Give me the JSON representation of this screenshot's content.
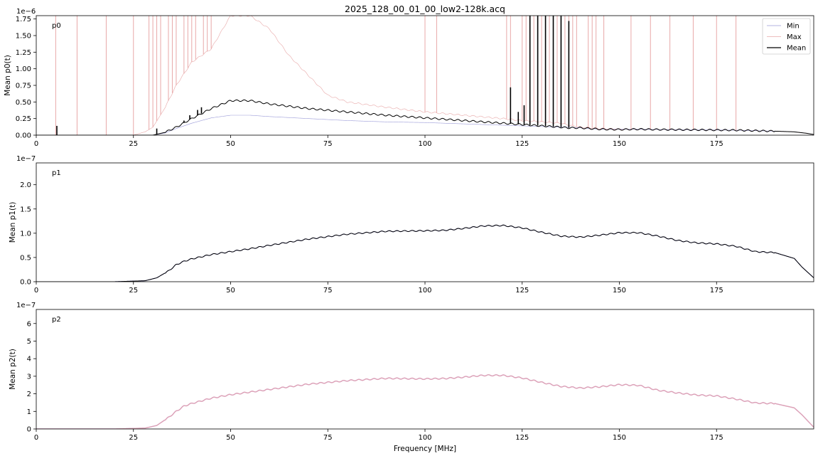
{
  "title": "2025_128_00_01_00_low2-128k.acq",
  "legend": {
    "position": "upper-right",
    "items": [
      {
        "label": "Min",
        "color": "#9a9ad8"
      },
      {
        "label": "Max",
        "color": "#e8a8a8"
      },
      {
        "label": "Mean",
        "color": "#000000"
      }
    ]
  },
  "colors": {
    "min": "#9a9ad8",
    "max": "#e8a8a8",
    "mean": "#000000",
    "p2_line": "#e0a2b2"
  },
  "chart_data": [
    {
      "type": "line",
      "panel": "p0",
      "panel_label": "p0",
      "ylabel": "Mean p0(t)",
      "scale_label": "1e−6",
      "xlim": [
        0,
        200
      ],
      "ylim": [
        0,
        1.8
      ],
      "xticks": [
        0,
        25,
        50,
        75,
        100,
        125,
        150,
        175
      ],
      "yticks": [
        0.0,
        0.25,
        0.5,
        0.75,
        1.0,
        1.25,
        1.5,
        1.75
      ],
      "ytick_labels": [
        "0.00",
        "0.25",
        "0.50",
        "0.75",
        "1.00",
        "1.25",
        "1.50",
        "1.75"
      ],
      "series": [
        {
          "name": "Min",
          "x": [
            0,
            25,
            30,
            33,
            36,
            40,
            45,
            50,
            55,
            60,
            70,
            80,
            90,
            100,
            110,
            120,
            125,
            130,
            135,
            137,
            140,
            145,
            150,
            155,
            160,
            170,
            180,
            190,
            195,
            198,
            200
          ],
          "y": [
            0,
            0,
            0,
            0.03,
            0.1,
            0.18,
            0.26,
            0.3,
            0.3,
            0.28,
            0.25,
            0.22,
            0.2,
            0.19,
            0.17,
            0.15,
            0.14,
            0.13,
            0.12,
            0.12,
            0.11,
            0.09,
            0.09,
            0.09,
            0.085,
            0.08,
            0.075,
            0.06,
            0.05,
            0.03,
            0.01
          ]
        },
        {
          "name": "Max",
          "x": [
            0,
            25,
            28,
            30,
            33,
            36,
            40,
            45,
            48,
            50,
            55,
            60,
            65,
            70,
            75,
            80,
            90,
            100,
            110,
            120,
            125,
            130,
            135,
            137,
            140,
            145,
            150,
            155,
            160,
            170,
            180,
            190,
            195,
            198,
            200
          ],
          "y": [
            0,
            0,
            0.05,
            0.12,
            0.4,
            0.75,
            1.1,
            1.3,
            1.6,
            1.8,
            1.8,
            1.6,
            1.2,
            0.9,
            0.6,
            0.5,
            0.42,
            0.35,
            0.3,
            0.25,
            0.22,
            0.2,
            0.18,
            0.15,
            0.12,
            0.1,
            0.09,
            0.09,
            0.085,
            0.08,
            0.075,
            0.06,
            0.05,
            0.03,
            0.01
          ]
        },
        {
          "name": "Mean",
          "x": [
            0,
            25,
            28,
            30,
            33,
            36,
            40,
            45,
            50,
            55,
            60,
            70,
            80,
            90,
            100,
            110,
            120,
            125,
            130,
            135,
            137,
            140,
            145,
            150,
            155,
            160,
            170,
            180,
            190,
            195,
            198,
            200
          ],
          "y": [
            0,
            0,
            0,
            0,
            0.04,
            0.12,
            0.25,
            0.4,
            0.52,
            0.52,
            0.47,
            0.4,
            0.35,
            0.3,
            0.26,
            0.22,
            0.18,
            0.16,
            0.14,
            0.12,
            0.11,
            0.11,
            0.09,
            0.085,
            0.09,
            0.085,
            0.08,
            0.075,
            0.06,
            0.05,
            0.03,
            0.01
          ]
        }
      ],
      "spikes_max": [
        5,
        10.5,
        18,
        25,
        29,
        30,
        31,
        32,
        34,
        35,
        36,
        38,
        39,
        40,
        41,
        43,
        44,
        45,
        100,
        103,
        121,
        122,
        125,
        126,
        127,
        128,
        129,
        130,
        131,
        132,
        133,
        134,
        135,
        136,
        137,
        138,
        139,
        142,
        143,
        144,
        146,
        153,
        158,
        163,
        169,
        175,
        180
      ],
      "spikes_mean": [
        5.3,
        31,
        38,
        39.5,
        41.5,
        42.5,
        122,
        124,
        125.5,
        127,
        129,
        131,
        133,
        135,
        137
      ],
      "spike_heights_mean": [
        0.14,
        0.1,
        0.22,
        0.3,
        0.38,
        0.42,
        0.72,
        0.35,
        0.45,
        1.8,
        1.8,
        1.8,
        1.8,
        1.8,
        1.72
      ]
    },
    {
      "type": "line",
      "panel": "p1",
      "panel_label": "p1",
      "ylabel": "Mean p1(t)",
      "scale_label": "1e−7",
      "xlim": [
        0,
        200
      ],
      "ylim": [
        0,
        2.45
      ],
      "xticks": [
        0,
        25,
        50,
        75,
        100,
        125,
        150,
        175
      ],
      "yticks": [
        0.0,
        0.5,
        1.0,
        1.5,
        2.0
      ],
      "ytick_labels": [
        "0.0",
        "0.5",
        "1.0",
        "1.5",
        "2.0"
      ],
      "series": [
        {
          "name": "Mean",
          "x": [
            0,
            20,
            28,
            31,
            34,
            36,
            38,
            40,
            45,
            50,
            55,
            60,
            70,
            80,
            90,
            100,
            105,
            110,
            115,
            120,
            125,
            130,
            135,
            140,
            145,
            150,
            155,
            160,
            165,
            170,
            175,
            180,
            185,
            190,
            195,
            197,
            200
          ],
          "y": [
            0,
            0,
            0.02,
            0.08,
            0.22,
            0.35,
            0.42,
            0.47,
            0.56,
            0.62,
            0.68,
            0.75,
            0.88,
            0.98,
            1.04,
            1.05,
            1.06,
            1.1,
            1.15,
            1.16,
            1.11,
            1.02,
            0.94,
            0.92,
            0.96,
            1.01,
            1.01,
            0.94,
            0.85,
            0.8,
            0.78,
            0.73,
            0.62,
            0.6,
            0.48,
            0.3,
            0.08
          ]
        }
      ]
    },
    {
      "type": "line",
      "panel": "p2",
      "panel_label": "p2",
      "ylabel": "Mean p2(t)",
      "xlabel": "Frequency [MHz]",
      "scale_label": "1e−7",
      "xlim": [
        0,
        200
      ],
      "ylim": [
        0,
        6.8
      ],
      "xticks": [
        0,
        25,
        50,
        75,
        100,
        125,
        150,
        175
      ],
      "yticks": [
        0,
        1,
        2,
        3,
        4,
        5,
        6
      ],
      "ytick_labels": [
        "0",
        "1",
        "2",
        "3",
        "4",
        "5",
        "6"
      ],
      "series": [
        {
          "name": "Mean",
          "x": [
            0,
            20,
            28,
            31,
            34,
            36,
            38,
            40,
            45,
            50,
            55,
            60,
            70,
            80,
            90,
            100,
            105,
            110,
            115,
            120,
            125,
            130,
            135,
            140,
            145,
            150,
            155,
            160,
            165,
            170,
            175,
            180,
            185,
            190,
            195,
            197,
            200
          ],
          "y": [
            0,
            0,
            0.05,
            0.2,
            0.65,
            1.0,
            1.3,
            1.45,
            1.75,
            1.95,
            2.1,
            2.25,
            2.55,
            2.75,
            2.88,
            2.85,
            2.87,
            2.95,
            3.05,
            3.05,
            2.9,
            2.65,
            2.42,
            2.33,
            2.4,
            2.52,
            2.48,
            2.2,
            2.05,
            1.93,
            1.88,
            1.7,
            1.48,
            1.45,
            1.2,
            0.8,
            0.1
          ]
        }
      ]
    }
  ]
}
